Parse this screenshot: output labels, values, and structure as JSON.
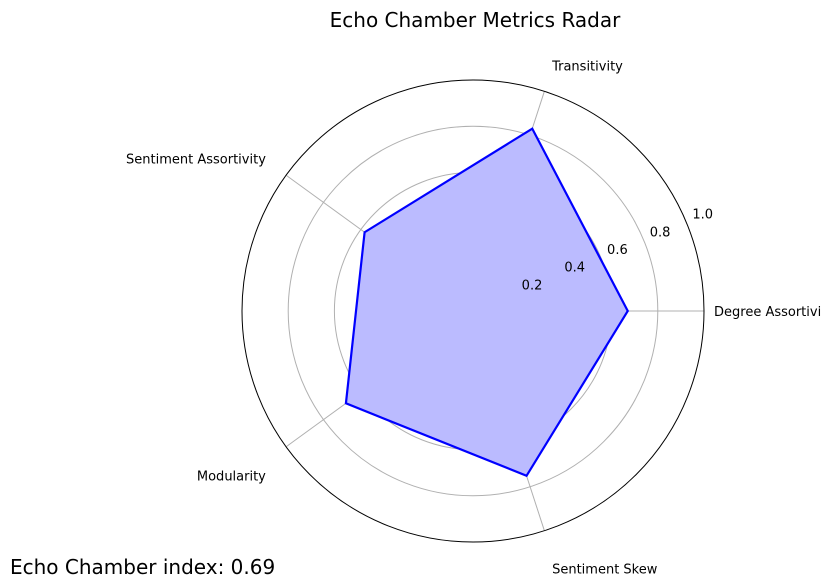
{
  "chart_data": {
    "type": "radar",
    "title": "Echo Chamber Metrics Radar",
    "categories": [
      "Degree Assortivity",
      "Transitivity",
      "Sentiment Assortivity",
      "Modularity",
      "Sentiment Skew"
    ],
    "values": [
      0.67,
      0.83,
      0.58,
      0.68,
      0.75
    ],
    "rlim": [
      0,
      1.0
    ],
    "rticks": [
      0.2,
      0.4,
      0.6,
      0.8,
      1.0
    ],
    "rtick_labels": [
      "0.2",
      "0.4",
      "0.6",
      "0.8",
      "1.0"
    ],
    "grid": true,
    "line_color": "#0000ff",
    "fill_color": "#bbbbff"
  },
  "footer": {
    "echo_chamber_index": "Echo Chamber index: 0.69"
  }
}
